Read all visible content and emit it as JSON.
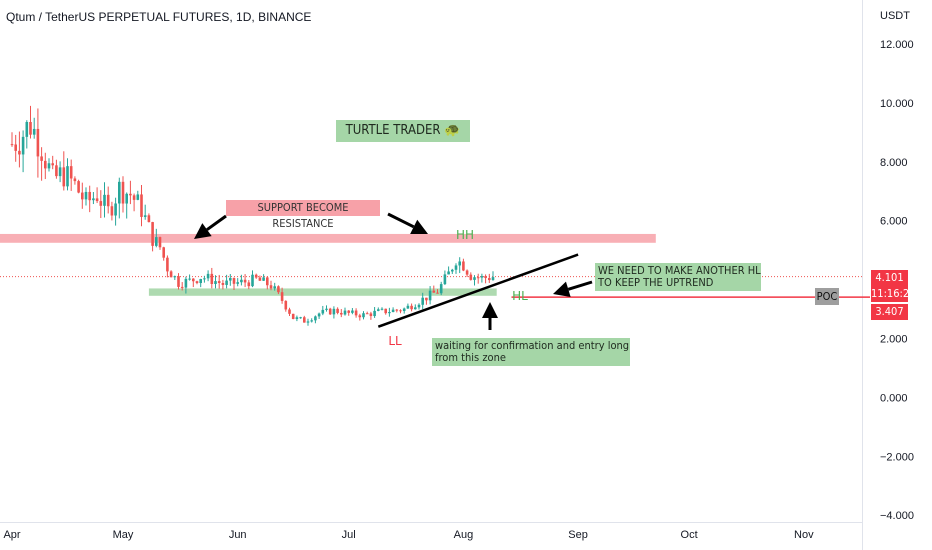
{
  "header": {
    "title": "Qtum / TetherUS PERPETUAL FUTURES, 1D, BINANCE",
    "unit": "USDT"
  },
  "chart_data": {
    "type": "candlestick",
    "title": "Qtum / TetherUS PERPETUAL FUTURES, 1D, BINANCE",
    "ylabel": "USDT",
    "ylim": [
      -4,
      12.7
    ],
    "y_ticks": [
      "12.000",
      "10.000",
      "8.000",
      "6.000",
      "4.000",
      "2.000",
      "0.000",
      "−2.000",
      "−4.000"
    ],
    "y_tick_values": [
      12,
      10,
      8,
      6,
      4,
      2,
      0,
      -2,
      -4
    ],
    "x_ticks": [
      "Apr",
      "May",
      "Jun",
      "Jul",
      "Aug",
      "Sep",
      "Oct",
      "Nov"
    ],
    "x_tick_dates": [
      "2022-04-01",
      "2022-05-01",
      "2022-06-01",
      "2022-07-01",
      "2022-08-01",
      "2022-09-01",
      "2022-10-01",
      "2022-11-01"
    ],
    "price_path": [
      [
        "2022-04-01",
        8.6
      ],
      [
        "2022-04-03",
        8.8
      ],
      [
        "2022-04-06",
        9.3
      ],
      [
        "2022-04-09",
        8.5
      ],
      [
        "2022-04-12",
        7.4
      ],
      [
        "2022-04-15",
        7.6
      ],
      [
        "2022-04-18",
        7.2
      ],
      [
        "2022-04-21",
        6.6
      ],
      [
        "2022-04-24",
        6.9
      ],
      [
        "2022-04-27",
        6.3
      ],
      [
        "2022-04-30",
        7.1
      ],
      [
        "2022-05-03",
        6.9
      ],
      [
        "2022-05-06",
        6.4
      ],
      [
        "2022-05-09",
        5.4
      ],
      [
        "2022-05-11",
        5.1
      ],
      [
        "2022-05-13",
        4.4
      ],
      [
        "2022-05-16",
        3.9
      ],
      [
        "2022-05-19",
        3.95
      ],
      [
        "2022-05-22",
        4.1
      ],
      [
        "2022-05-25",
        4.0
      ],
      [
        "2022-05-28",
        3.85
      ],
      [
        "2022-06-02",
        3.9
      ],
      [
        "2022-06-06",
        4.0
      ],
      [
        "2022-06-10",
        3.8
      ],
      [
        "2022-06-13",
        3.3
      ],
      [
        "2022-06-16",
        2.7
      ],
      [
        "2022-06-19",
        2.6
      ],
      [
        "2022-06-23",
        2.85
      ],
      [
        "2022-06-27",
        2.95
      ],
      [
        "2022-07-01",
        2.85
      ],
      [
        "2022-07-05",
        2.8
      ],
      [
        "2022-07-09",
        2.9
      ],
      [
        "2022-07-13",
        2.95
      ],
      [
        "2022-07-16",
        3.0
      ],
      [
        "2022-07-19",
        3.2
      ],
      [
        "2022-07-22",
        3.4
      ],
      [
        "2022-07-25",
        3.6
      ],
      [
        "2022-07-28",
        4.2
      ],
      [
        "2022-07-30",
        4.7
      ],
      [
        "2022-08-01",
        4.5
      ],
      [
        "2022-08-03",
        4.15
      ],
      [
        "2022-08-06",
        4.05
      ],
      [
        "2022-08-09",
        4.1
      ]
    ],
    "annotations": {
      "resistance_zone": {
        "from": "2022-04-01",
        "to": "2022-09-22",
        "low": 5.25,
        "high": 5.55,
        "label": "SUPPORT BECOME RESISTANCE"
      },
      "support_zone": {
        "from": "2022-05-08",
        "to": "2022-08-10",
        "low": 3.45,
        "high": 3.7
      },
      "trendline": {
        "from": [
          "2022-07-09",
          2.4
        ],
        "to": [
          "2022-09-01",
          4.85
        ]
      },
      "poc_line": {
        "from": "2022-08-14",
        "value": 3.407
      },
      "current_price_line": 4.101
    }
  },
  "annotations": {
    "brand_label": "TURTLE TRADER 🐢",
    "resistance_label": "SUPPORT BECOME RESISTANCE",
    "hh_label": "HH",
    "ll_label": "LL",
    "hl_label": "HL",
    "uptrend_note_line1": "WE NEED TO MAKE ANOTHER HL",
    "uptrend_note_line2": "TO KEEP THE UPTREND",
    "wait_note_line1": "waiting for confirmation and entry long",
    "wait_note_line2": "from this zone",
    "poc_label": "POC"
  },
  "price_badges": {
    "last_price": "4.101",
    "countdown": "11:16:29",
    "poc_price": "3.407"
  },
  "colors": {
    "up": "#26a69a",
    "down": "#ef5350",
    "resistance": "#f7a1a8",
    "support": "#a5d6a7",
    "last_price_badge": "#f23645",
    "poc_line": "#f23645",
    "poc_badge": "#9e9e9e",
    "trendline": "#000000",
    "ll_label": "#f23645",
    "hh_label": "#4caf50",
    "hl_label": "#4caf50"
  }
}
